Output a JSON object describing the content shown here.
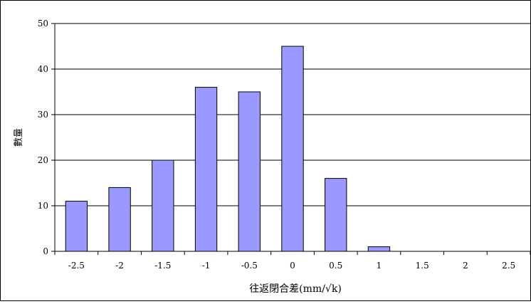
{
  "chart_data": {
    "type": "bar",
    "title": "",
    "xlabel": "往返閉合差(mm/√k)",
    "ylabel": "數量",
    "categories": [
      "-2.5",
      "-2",
      "-1.5",
      "-1",
      "-0.5",
      "0",
      "0.5",
      "1",
      "1.5",
      "2",
      "2.5"
    ],
    "values": [
      11,
      14,
      20,
      36,
      35,
      45,
      16,
      1,
      0,
      0,
      0
    ],
    "ylim": [
      0,
      50
    ],
    "yticks": [
      "0",
      "10",
      "20",
      "30",
      "40",
      "50"
    ],
    "grid": true,
    "legend": "none",
    "bar_color": "#9999ff"
  }
}
